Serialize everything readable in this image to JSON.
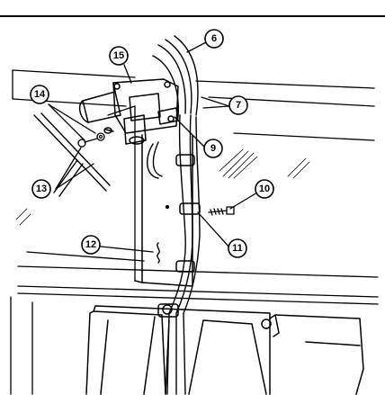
{
  "callouts": [
    {
      "id": "c6",
      "label": "6"
    },
    {
      "id": "c7",
      "label": "7"
    },
    {
      "id": "c9",
      "label": "9"
    },
    {
      "id": "c10",
      "label": "10"
    },
    {
      "id": "c11",
      "label": "11"
    },
    {
      "id": "c12",
      "label": "12"
    },
    {
      "id": "c13",
      "label": "13"
    },
    {
      "id": "c14",
      "label": "14"
    },
    {
      "id": "c15",
      "label": "15"
    }
  ]
}
